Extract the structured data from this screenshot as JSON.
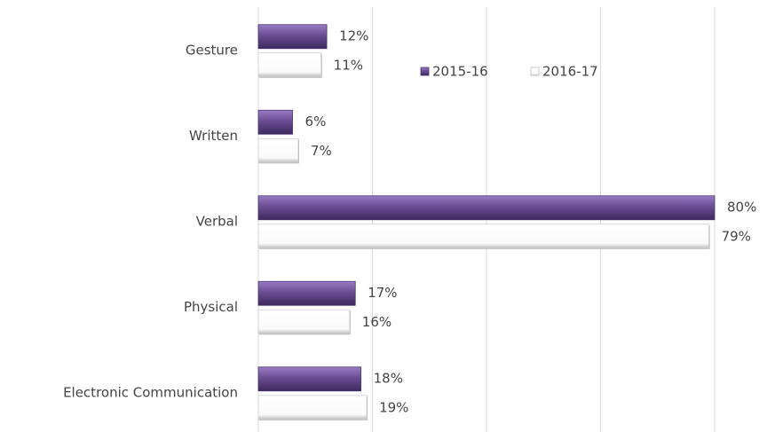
{
  "chart_data": {
    "type": "bar",
    "orientation": "horizontal",
    "categories": [
      "Gesture",
      "Written",
      "Verbal",
      "Physical",
      "Electronic Communication"
    ],
    "series": [
      {
        "name": "2015-16",
        "color": "#6a4c93",
        "values": [
          12,
          6,
          80,
          17,
          18
        ],
        "value_labels": [
          "12%",
          "6%",
          "80%",
          "17%",
          "18%"
        ]
      },
      {
        "name": "2016-17",
        "color": "#ffffff",
        "values": [
          11,
          7,
          79,
          16,
          19
        ],
        "value_labels": [
          "11%",
          "7%",
          "79%",
          "16%",
          "19%"
        ]
      }
    ],
    "xlim": [
      0,
      80
    ],
    "xticks": [
      0,
      20,
      40,
      60,
      80
    ],
    "grid": true,
    "legend": "top"
  }
}
